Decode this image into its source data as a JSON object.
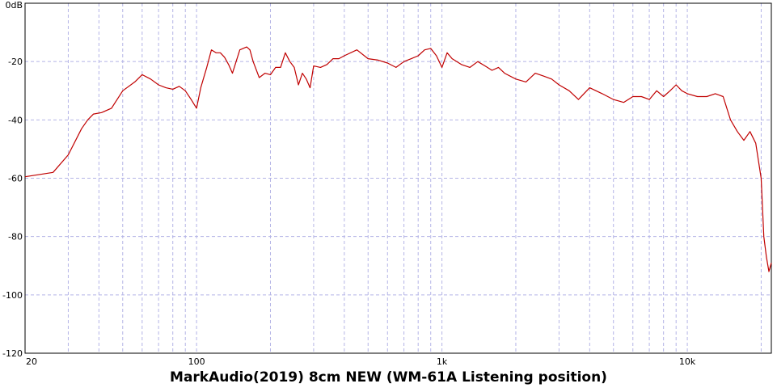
{
  "chart_data": {
    "type": "line",
    "title": "MarkAudio(2019) 8cm NEW (WM-61A Listening position)",
    "xscale": "log",
    "xlim": [
      20,
      22000
    ],
    "ylim": [
      -120,
      0
    ],
    "x_ticks": [
      "20",
      "100",
      "1k",
      "10k"
    ],
    "y_ticks": [
      "0dB",
      "-20",
      "-40",
      "-60",
      "-80",
      "-100",
      "-120"
    ],
    "grid": true,
    "series": [
      {
        "color": "#c00000",
        "x": [
          20,
          26,
          30,
          34,
          36,
          38,
          41,
          45,
          50,
          56,
          60,
          65,
          70,
          75,
          80,
          85,
          90,
          95,
          100,
          104,
          110,
          115,
          120,
          125,
          130,
          135,
          140,
          150,
          160,
          165,
          170,
          180,
          190,
          200,
          210,
          220,
          230,
          240,
          250,
          260,
          270,
          280,
          290,
          300,
          320,
          340,
          360,
          380,
          400,
          450,
          500,
          550,
          600,
          650,
          700,
          750,
          800,
          850,
          900,
          950,
          1000,
          1050,
          1100,
          1200,
          1300,
          1400,
          1500,
          1600,
          1700,
          1800,
          2000,
          2200,
          2400,
          2600,
          2800,
          3000,
          3300,
          3600,
          4000,
          4500,
          5000,
          5500,
          6000,
          6500,
          7000,
          7500,
          8000,
          8500,
          9000,
          9500,
          10000,
          11000,
          12000,
          13000,
          14000,
          15000,
          16000,
          17000,
          18000,
          19000,
          20000,
          20500,
          21000,
          21500,
          22000
        ],
        "y": [
          -59.5,
          -58,
          -52,
          -43,
          -40,
          -38,
          -37.5,
          -36,
          -30,
          -27,
          -24.5,
          -26,
          -28,
          -29,
          -29.5,
          -28.5,
          -30,
          -33,
          -36,
          -29,
          -22,
          -16,
          -17,
          -17,
          -18.5,
          -21,
          -24,
          -16,
          -15,
          -16,
          -20,
          -25.5,
          -24,
          -24.5,
          -22,
          -22,
          -17,
          -20,
          -22,
          -28,
          -24,
          -26,
          -29,
          -21.5,
          -22,
          -21,
          -19,
          -19,
          -18,
          -16,
          -19,
          -19.5,
          -20.5,
          -22,
          -20,
          -19,
          -18,
          -16,
          -15.5,
          -18,
          -22,
          -17,
          -19,
          -21,
          -22,
          -20,
          -21.5,
          -23,
          -22,
          -24,
          -26,
          -27,
          -24,
          -25,
          -26,
          -28,
          -30,
          -33,
          -29,
          -31,
          -33,
          -34,
          -32,
          -32,
          -33,
          -30,
          -32,
          -30,
          -28,
          -30,
          -31,
          -32,
          -32,
          -31,
          -32,
          -40,
          -44,
          -47,
          -44,
          -48,
          -60,
          -80,
          -87,
          -92,
          -89
        ]
      }
    ]
  }
}
